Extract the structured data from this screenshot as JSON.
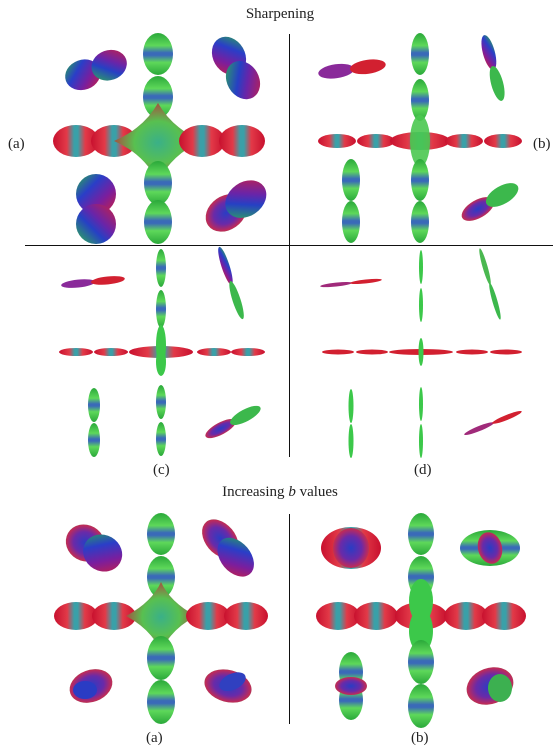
{
  "titles": {
    "sharpening": "Sharpening",
    "increasing_prefix": "Increasing ",
    "increasing_var": "b",
    "increasing_suffix": " values"
  },
  "labels": {
    "a_side": "(a)",
    "b_side": "(b)",
    "c": "(c)",
    "d": "(d)",
    "a_bottom": "(a)",
    "b_bottom": "(b)"
  },
  "colors": {
    "red": "#d8203a",
    "green": "#3cc84a",
    "blue": "#2530c0",
    "magenta": "#a02080",
    "rule": "#111111"
  }
}
